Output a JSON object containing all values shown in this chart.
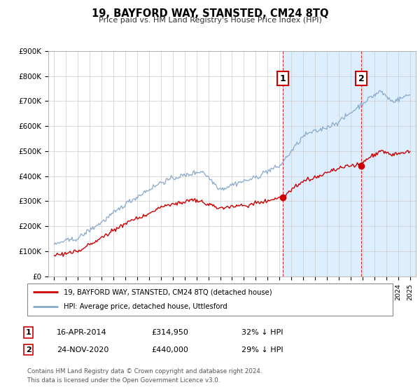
{
  "title": "19, BAYFORD WAY, STANSTED, CM24 8TQ",
  "subtitle": "Price paid vs. HM Land Registry's House Price Index (HPI)",
  "legend_line1": "19, BAYFORD WAY, STANSTED, CM24 8TQ (detached house)",
  "legend_line2": "HPI: Average price, detached house, Uttlesford",
  "sale1_date": "16-APR-2014",
  "sale1_price": "£314,950",
  "sale1_hpi": "32% ↓ HPI",
  "sale2_date": "24-NOV-2020",
  "sale2_price": "£440,000",
  "sale2_hpi": "29% ↓ HPI",
  "footer1": "Contains HM Land Registry data © Crown copyright and database right 2024.",
  "footer2": "This data is licensed under the Open Government Licence v3.0.",
  "red_color": "#cc0000",
  "blue_color": "#88aacc",
  "blue_shade": "#ddeeff",
  "sale1_x": 2014.29,
  "sale2_x": 2020.9,
  "sale1_y": 314950,
  "sale2_y": 440000,
  "vline1_x": 2014.29,
  "vline2_x": 2020.9,
  "ylim": [
    0,
    900000
  ],
  "xlim": [
    1994.5,
    2025.5
  ]
}
